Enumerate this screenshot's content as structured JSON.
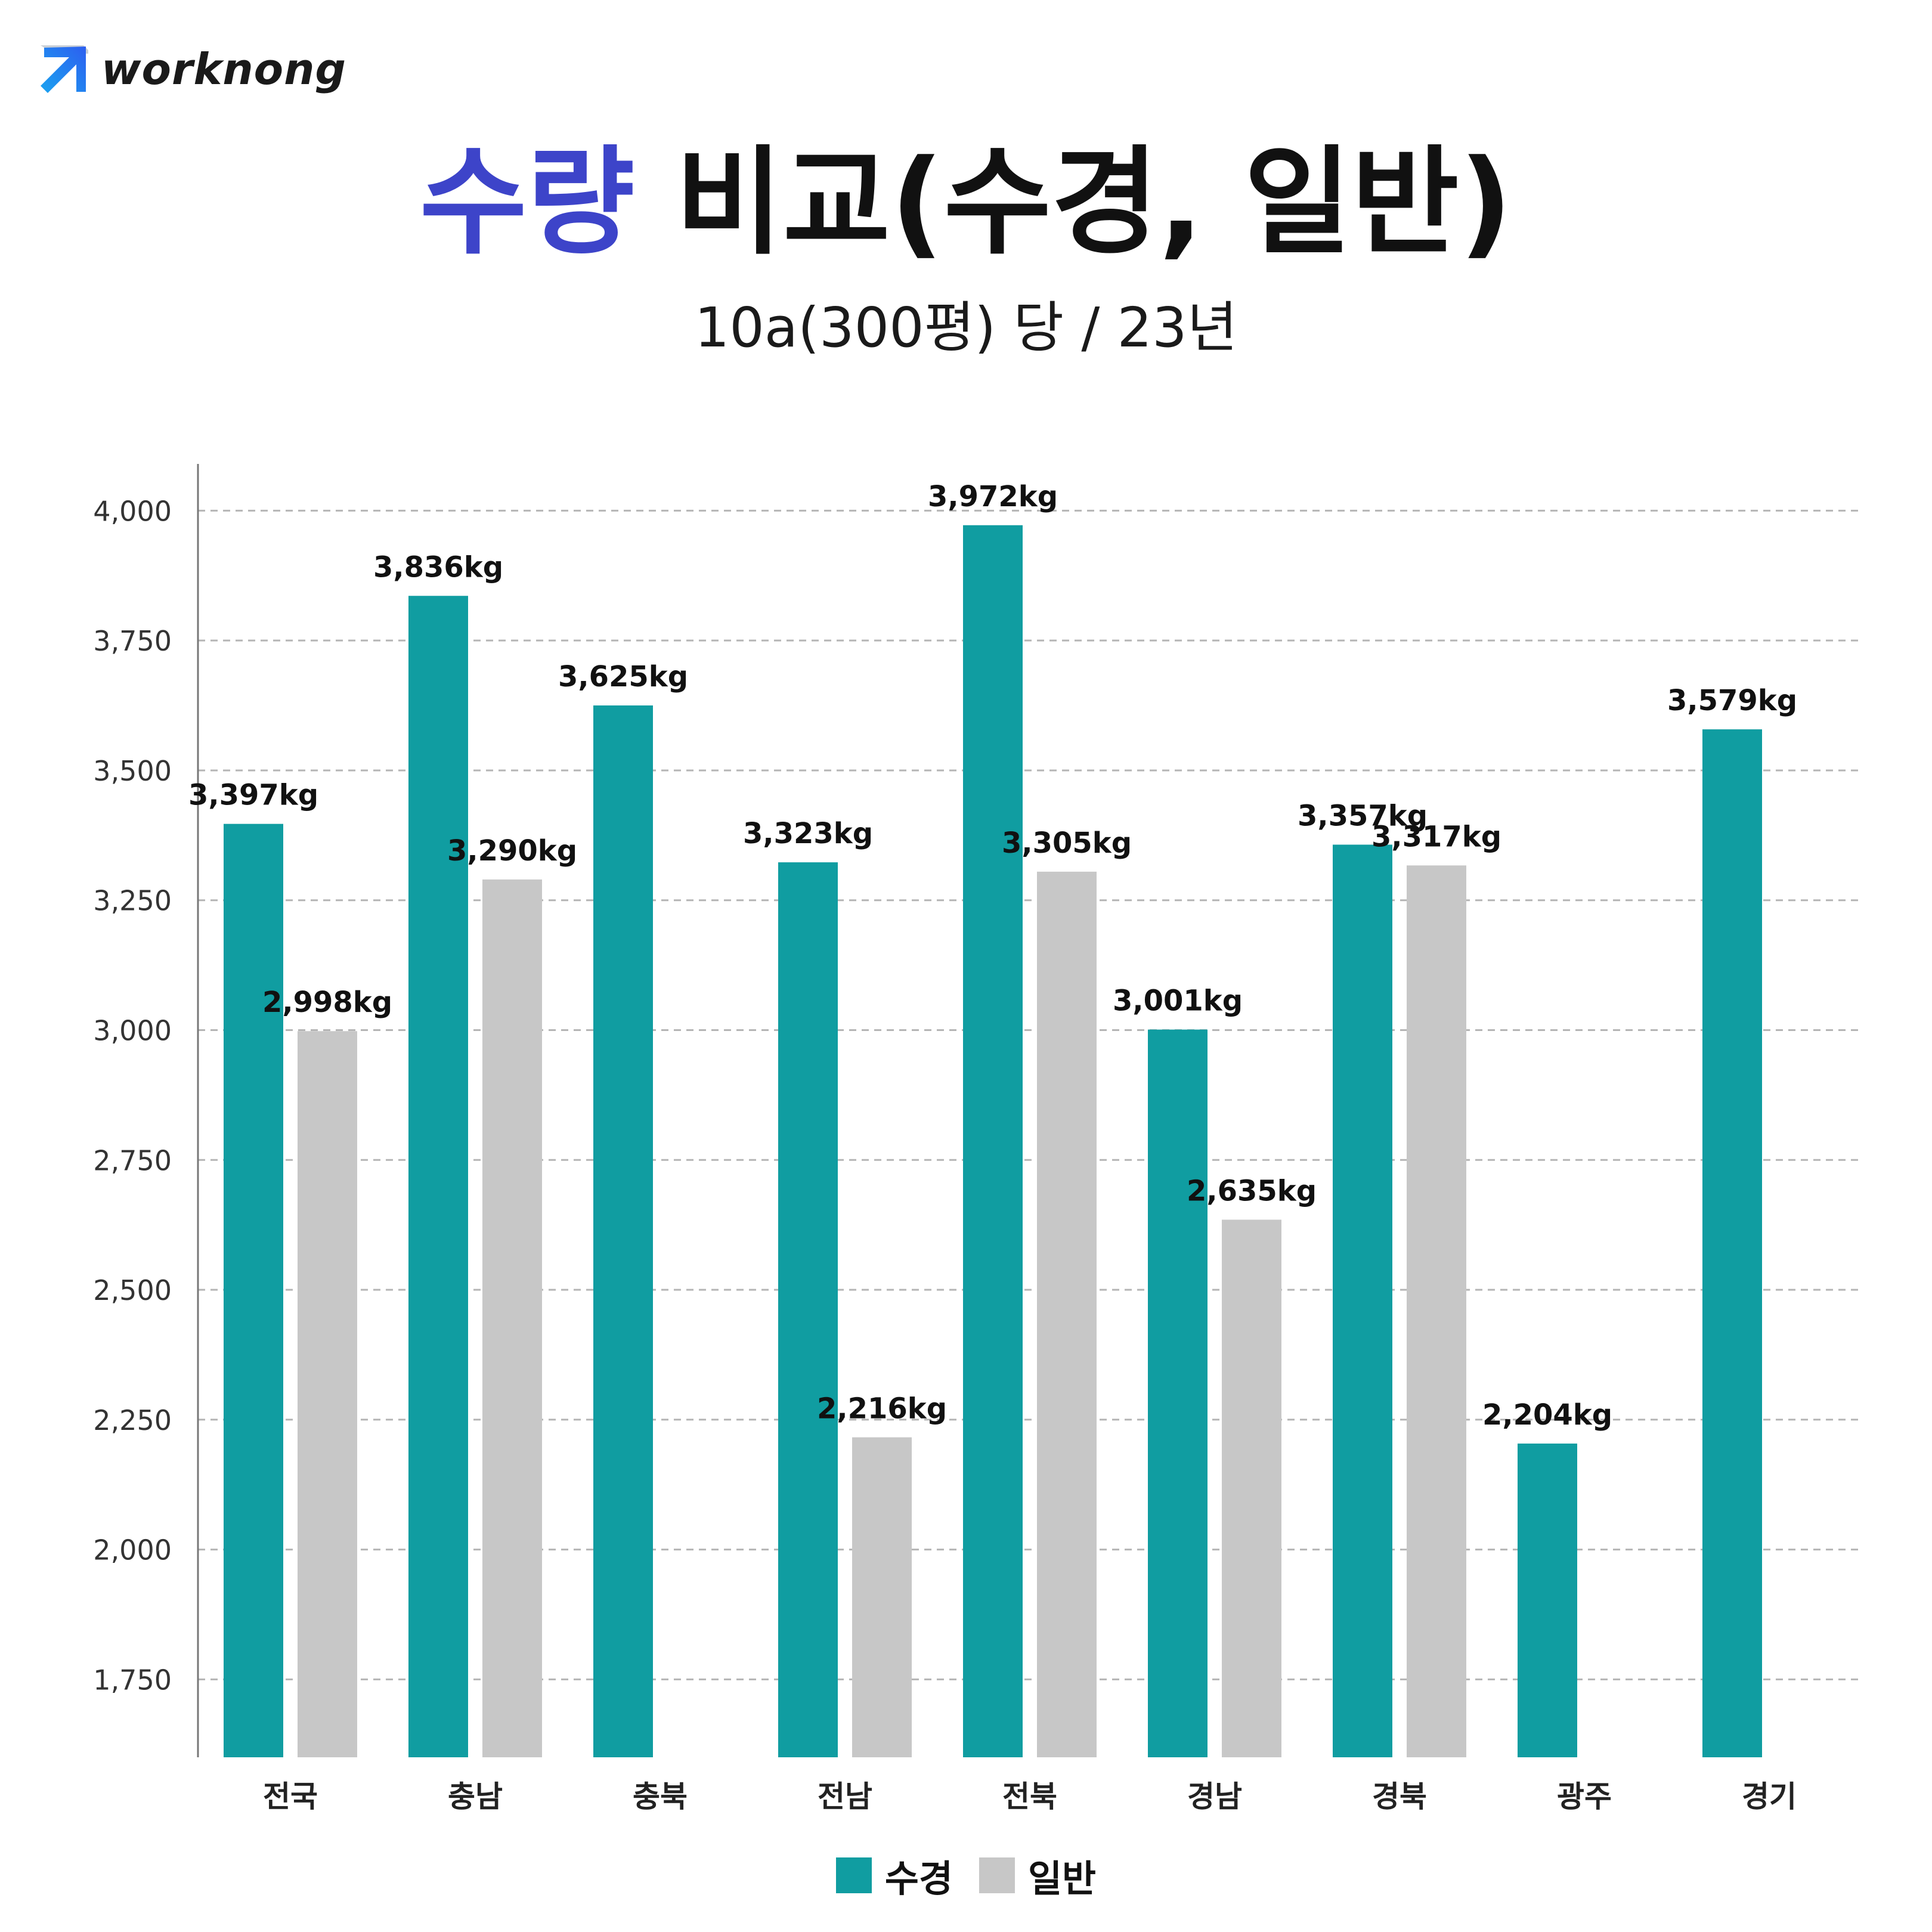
{
  "brand": {
    "name": "worknong"
  },
  "title": {
    "accent": "수량",
    "rest": " 비교(수경, 일반)"
  },
  "subtitle": "10a(300평) 당 / 23년",
  "colors": {
    "title_accent": "#3d44c9",
    "hydroponic": "#109da1",
    "general": "#c7c7c7",
    "grid": "#b5b5b5",
    "axis": "#777777"
  },
  "chart_data": {
    "type": "bar",
    "categories": [
      "전국",
      "충남",
      "충북",
      "전남",
      "전북",
      "경남",
      "경북",
      "광주",
      "경기"
    ],
    "series": [
      {
        "name": "수경",
        "values": [
          3397,
          3836,
          3625,
          3323,
          3972,
          3001,
          3357,
          2204,
          3579
        ]
      },
      {
        "name": "일반",
        "values": [
          2998,
          3290,
          null,
          2216,
          3305,
          2635,
          3317,
          null,
          null
        ]
      }
    ],
    "value_labels": {
      "hydroponic": [
        "3,397kg",
        "3,836kg",
        "3,625kg",
        "3,323kg",
        "3,972kg",
        "3,001kg",
        "3,357kg",
        "2,204kg",
        "3,579kg"
      ],
      "general": [
        "2,998kg",
        "3,290kg",
        "",
        "2,216kg",
        "3,305kg",
        "2,635kg",
        "3,317kg",
        "",
        ""
      ]
    },
    "y_ticks": [
      "1,750",
      "2,000",
      "2,250",
      "2,500",
      "2,750",
      "3,000",
      "3,250",
      "3,500",
      "3,750",
      "4,000"
    ],
    "y_tick_values": [
      1750,
      2000,
      2250,
      2500,
      2750,
      3000,
      3250,
      3500,
      3750,
      4000
    ],
    "ylim": [
      1600,
      4090
    ],
    "grid": true,
    "legend_position": "bottom-center",
    "xlabel": "",
    "ylabel": ""
  }
}
